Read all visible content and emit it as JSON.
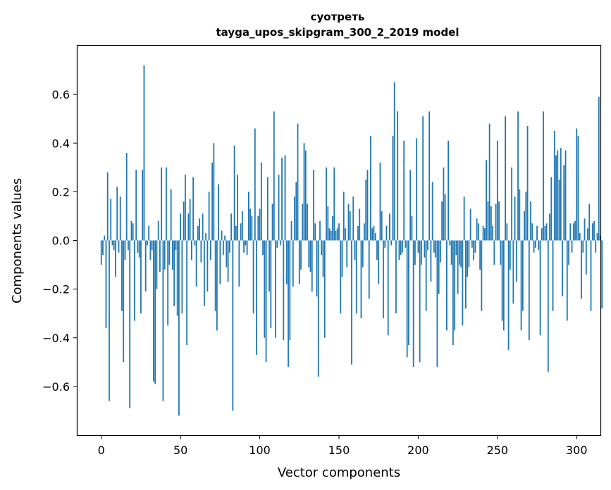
{
  "chart_data": {
    "type": "bar",
    "title": "суотреть",
    "subtitle": "tayga_upos_skipgram_300_2_2019 model",
    "xlabel": "Vector components",
    "ylabel": "Components values",
    "xlim": [
      -15,
      315
    ],
    "ylim": [
      -0.8,
      0.8
    ],
    "xticks": [
      0,
      50,
      100,
      150,
      200,
      250,
      300
    ],
    "yticks": [
      -0.6,
      -0.4,
      -0.2,
      0.0,
      0.2,
      0.4,
      0.6
    ],
    "xtick_labels": [
      "0",
      "50",
      "100",
      "150",
      "200",
      "250",
      "300"
    ],
    "ytick_labels": [
      "−0.6",
      "−0.4",
      "−0.2",
      "0.0",
      "0.2",
      "0.4",
      "0.6"
    ],
    "bar_color": "#1f77b4",
    "values": [
      -0.1,
      -0.06,
      0.02,
      -0.36,
      0.28,
      -0.66,
      0.17,
      -0.02,
      -0.04,
      -0.15,
      0.22,
      -0.05,
      0.18,
      -0.29,
      -0.5,
      -0.08,
      0.36,
      -0.04,
      -0.69,
      0.08,
      0.07,
      -0.33,
      0.29,
      -0.05,
      -0.07,
      -0.3,
      0.29,
      0.72,
      -0.21,
      -0.02,
      0.06,
      -0.08,
      -0.04,
      -0.58,
      -0.59,
      -0.2,
      0.08,
      -0.13,
      0.3,
      -0.66,
      -0.12,
      0.3,
      -0.35,
      -0.1,
      0.21,
      -0.12,
      -0.27,
      -0.04,
      -0.31,
      -0.72,
      0.11,
      -0.3,
      0.16,
      0.27,
      -0.43,
      0.11,
      0.17,
      -0.08,
      0.26,
      -0.02,
      -0.19,
      0.06,
      0.09,
      -0.09,
      0.11,
      -0.27,
      0.03,
      -0.21,
      0.2,
      -0.08,
      0.32,
      0.4,
      -0.29,
      -0.37,
      0.23,
      -0.18,
      0.04,
      -0.06,
      0.02,
      -0.11,
      -0.17,
      -0.05,
      0.11,
      -0.7,
      0.39,
      0.06,
      0.27,
      -0.19,
      0.07,
      0.12,
      -0.05,
      -0.02,
      -0.06,
      0.2,
      0.13,
      0.1,
      -0.3,
      0.46,
      -0.47,
      0.1,
      0.13,
      0.32,
      -0.06,
      -0.4,
      -0.5,
      0.26,
      -0.21,
      -0.36,
      0.15,
      0.53,
      -0.4,
      -0.03,
      0.27,
      -0.02,
      0.34,
      -0.41,
      0.35,
      -0.18,
      -0.52,
      -0.41,
      0.08,
      -0.19,
      0.18,
      0.24,
      0.48,
      -0.18,
      -0.12,
      0.15,
      0.4,
      0.37,
      0.15,
      -0.11,
      -0.13,
      -0.21,
      0.29,
      0.07,
      -0.23,
      -0.56,
      0.08,
      -0.06,
      -0.15,
      -0.4,
      0.3,
      0.14,
      0.05,
      0.04,
      0.1,
      0.3,
      0.04,
      0.05,
      0.07,
      -0.3,
      -0.15,
      0.2,
      0.05,
      -0.11,
      0.15,
      0.12,
      -0.51,
      0.18,
      -0.08,
      -0.3,
      0.06,
      0.13,
      -0.32,
      -0.11,
      0.07,
      0.25,
      0.29,
      -0.24,
      0.43,
      0.05,
      0.06,
      0.03,
      -0.08,
      -0.18,
      0.32,
      0.12,
      -0.32,
      -0.03,
      0.06,
      -0.39,
      0.11,
      -0.02,
      0.43,
      0.65,
      -0.3,
      0.53,
      -0.08,
      -0.06,
      -0.05,
      0.41,
      -0.03,
      -0.48,
      -0.43,
      0.29,
      0.1,
      -0.52,
      -0.1,
      0.42,
      -0.05,
      -0.5,
      -0.1,
      0.51,
      -0.07,
      -0.29,
      -0.04,
      0.53,
      -0.17,
      0.24,
      -0.05,
      -0.07,
      -0.52,
      -0.22,
      -0.09,
      0.16,
      0.3,
      0.19,
      -0.37,
      0.41,
      -0.02,
      -0.1,
      -0.43,
      -0.37,
      -0.06,
      -0.22,
      -0.1,
      -0.11,
      -0.35,
      0.18,
      -0.28,
      -0.15,
      -0.11,
      0.13,
      -0.03,
      -0.08,
      -0.05,
      0.09,
      0.07,
      -0.12,
      -0.29,
      0.06,
      0.05,
      0.33,
      0.16,
      0.48,
      0.14,
      0.06,
      -0.1,
      0.15,
      0.41,
      0.16,
      -0.1,
      -0.33,
      -0.37,
      0.51,
      0.07,
      -0.45,
      -0.12,
      0.3,
      -0.26,
      0.18,
      -0.17,
      0.53,
      0.21,
      -0.37,
      -0.29,
      0.12,
      0.2,
      0.47,
      -0.41,
      0.16,
      0.07,
      -0.05,
      -0.03,
      0.06,
      -0.04,
      -0.39,
      0.05,
      0.53,
      0.06,
      0.07,
      -0.54,
      0.11,
      0.26,
      -0.29,
      0.45,
      0.35,
      0.37,
      0.25,
      0.38,
      -0.23,
      0.31,
      0.37,
      -0.33,
      -0.1,
      0.07,
      -0.05,
      0.07,
      0.08,
      0.46,
      0.43,
      0.03,
      -0.24,
      -0.05,
      0.09,
      -0.14,
      0.05,
      0.15,
      -0.29,
      0.07,
      0.08,
      -0.05,
      0.03,
      0.59,
      0.02,
      -0.28
    ]
  }
}
